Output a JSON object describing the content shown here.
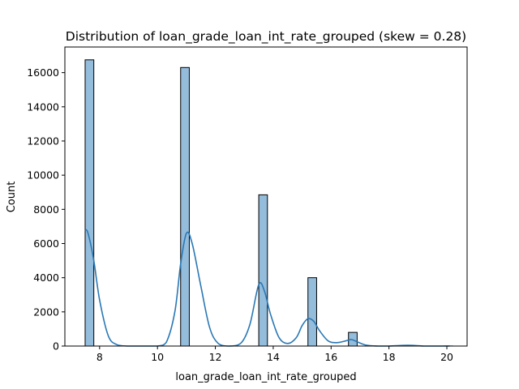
{
  "chart_data": {
    "type": "bar",
    "title": "Distribution of loan_grade_loan_int_rate_grouped (skew = 0.28)",
    "xlabel": "loan_grade_loan_int_rate_grouped",
    "ylabel": "Count",
    "xlim": [
      6.8,
      20.7
    ],
    "ylim": [
      0,
      17500
    ],
    "xticks": [
      8,
      10,
      12,
      14,
      16,
      18,
      20
    ],
    "yticks": [
      0,
      2000,
      4000,
      6000,
      8000,
      10000,
      12000,
      14000,
      16000
    ],
    "grid": false,
    "bin_width": 0.3,
    "bars": [
      {
        "x_start": 7.5,
        "x_end": 7.8,
        "count": 16750
      },
      {
        "x_start": 10.8,
        "x_end": 11.1,
        "count": 16300
      },
      {
        "x_start": 13.5,
        "x_end": 13.8,
        "count": 8850
      },
      {
        "x_start": 15.2,
        "x_end": 15.5,
        "count": 4000
      },
      {
        "x_start": 16.6,
        "x_end": 16.9,
        "count": 800
      },
      {
        "x_start": 18.5,
        "x_end": 18.8,
        "count": 15
      },
      {
        "x_start": 19.9,
        "x_end": 20.2,
        "count": 5
      }
    ],
    "kde": {
      "x": [
        7.5,
        7.6,
        7.8,
        8.0,
        8.3,
        8.6,
        9.0,
        9.5,
        10.0,
        10.3,
        10.6,
        10.8,
        11.0,
        11.2,
        11.5,
        11.8,
        12.1,
        12.5,
        12.9,
        13.2,
        13.5,
        13.7,
        13.9,
        14.2,
        14.5,
        14.8,
        15.0,
        15.2,
        15.4,
        15.6,
        15.9,
        16.2,
        16.5,
        16.7,
        16.9,
        17.2,
        17.6,
        18.0,
        18.5,
        18.8,
        19.2,
        19.6,
        20.0,
        20.1
      ],
      "y": [
        6800,
        6600,
        5000,
        2700,
        600,
        80,
        0,
        0,
        0,
        200,
        2000,
        4800,
        6600,
        6000,
        3500,
        1100,
        150,
        0,
        200,
        1300,
        3600,
        3200,
        1900,
        500,
        150,
        500,
        1200,
        1600,
        1450,
        900,
        300,
        200,
        300,
        380,
        250,
        60,
        0,
        0,
        40,
        40,
        0,
        0,
        0,
        0
      ]
    },
    "colors": {
      "bar_fill": "#94bcdb",
      "bar_edge": "#000000",
      "kde_line": "#2a78b5"
    }
  }
}
